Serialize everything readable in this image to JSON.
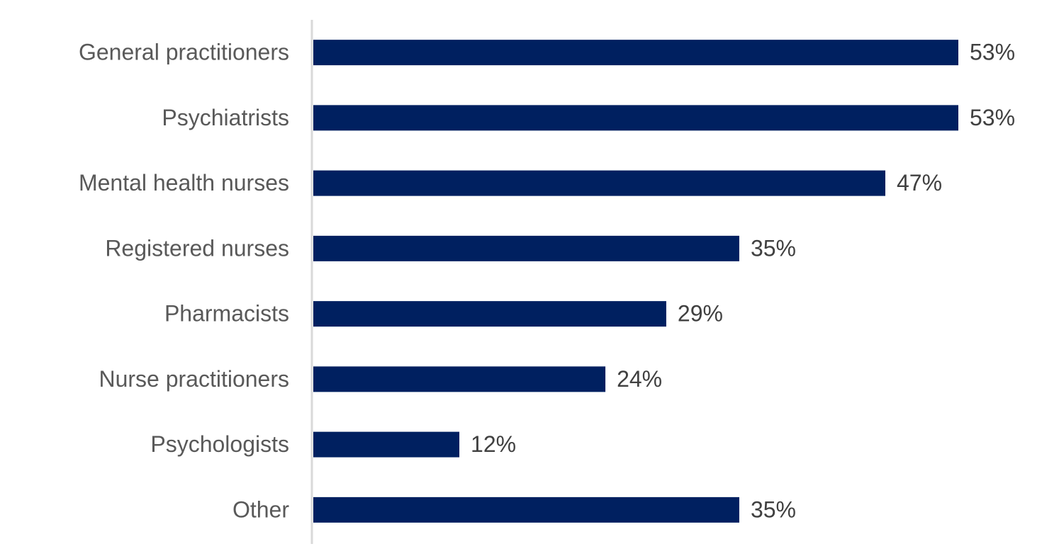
{
  "chart_data": {
    "type": "bar",
    "orientation": "horizontal",
    "categories": [
      "General practitioners",
      "Psychiatrists",
      "Mental health nurses",
      "Registered nurses",
      "Pharmacists",
      "Nurse practitioners",
      "Psychologists",
      "Other"
    ],
    "values": [
      53,
      53,
      47,
      35,
      29,
      24,
      12,
      35
    ],
    "value_labels": [
      "53%",
      "53%",
      "47%",
      "35%",
      "29%",
      "24%",
      "12%",
      "35%"
    ],
    "color": "#002060"
  }
}
